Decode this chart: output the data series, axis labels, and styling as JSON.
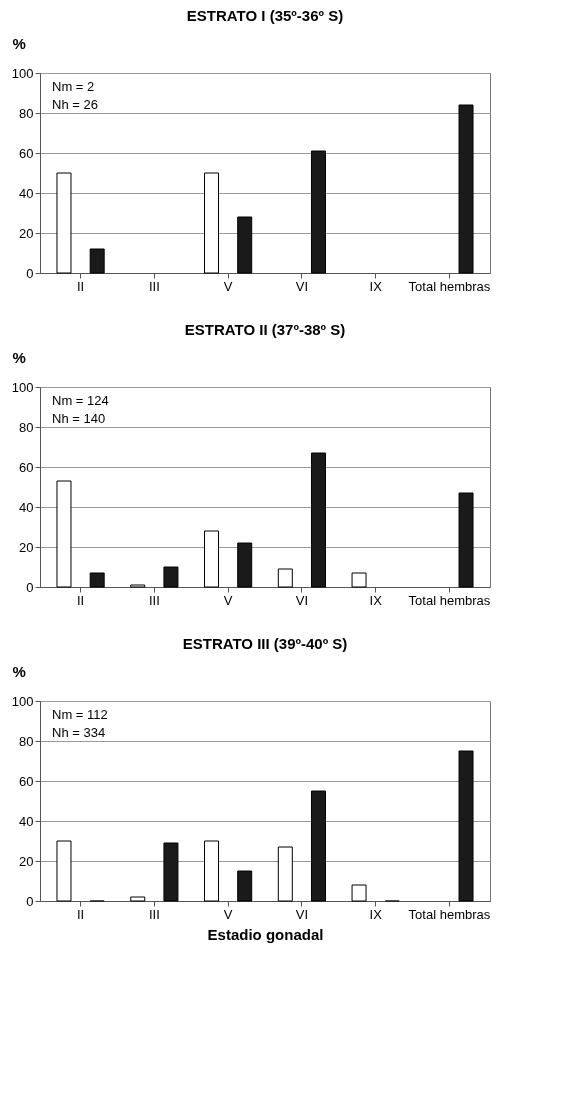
{
  "chart_data": [
    {
      "type": "bar",
      "title": "ESTRATO I (35º-36º S)",
      "ylabel": "%",
      "categories": [
        "II",
        "III",
        "V",
        "VI",
        "IX",
        "Total hembras"
      ],
      "series": [
        {
          "color": "#ffffff",
          "values": [
            50,
            null,
            50,
            null,
            null,
            null
          ]
        },
        {
          "color": "#1a1a1a",
          "values": [
            12,
            null,
            28,
            61,
            null,
            84
          ]
        }
      ],
      "ylim": [
        0,
        100
      ],
      "yticks": [
        0,
        20,
        40,
        60,
        80,
        100
      ],
      "grid": "y",
      "legend": false,
      "annotations": [
        "Nm  = 2",
        "Nh  = 26"
      ]
    },
    {
      "type": "bar",
      "title": "ESTRATO II (37º-38º S)",
      "ylabel": "%",
      "categories": [
        "II",
        "III",
        "V",
        "VI",
        "IX",
        "Total hembras"
      ],
      "series": [
        {
          "color": "#ffffff",
          "values": [
            53,
            1,
            28,
            9,
            7,
            null
          ]
        },
        {
          "color": "#1a1a1a",
          "values": [
            7,
            10,
            22,
            67,
            null,
            47
          ]
        }
      ],
      "ylim": [
        0,
        100
      ],
      "yticks": [
        0,
        20,
        40,
        60,
        80,
        100
      ],
      "grid": "y",
      "legend": false,
      "annotations": [
        "Nm = 124",
        "Nh = 140"
      ]
    },
    {
      "type": "bar",
      "title": "ESTRATO III (39º-40º S)",
      "ylabel": "%",
      "xlabel": "Estadio gonadal",
      "categories": [
        "II",
        "III",
        "V",
        "VI",
        "IX",
        "Total hembras"
      ],
      "series": [
        {
          "color": "#ffffff",
          "values": [
            30,
            2,
            30,
            27,
            8,
            null
          ]
        },
        {
          "color": "#1a1a1a",
          "values": [
            0,
            29,
            15,
            55,
            0,
            75
          ]
        }
      ],
      "ylim": [
        0,
        100
      ],
      "yticks": [
        0,
        20,
        40,
        60,
        80,
        100
      ],
      "grid": "y",
      "legend": false,
      "annotations": [
        "Nm = 112",
        "Nh = 334"
      ]
    }
  ]
}
